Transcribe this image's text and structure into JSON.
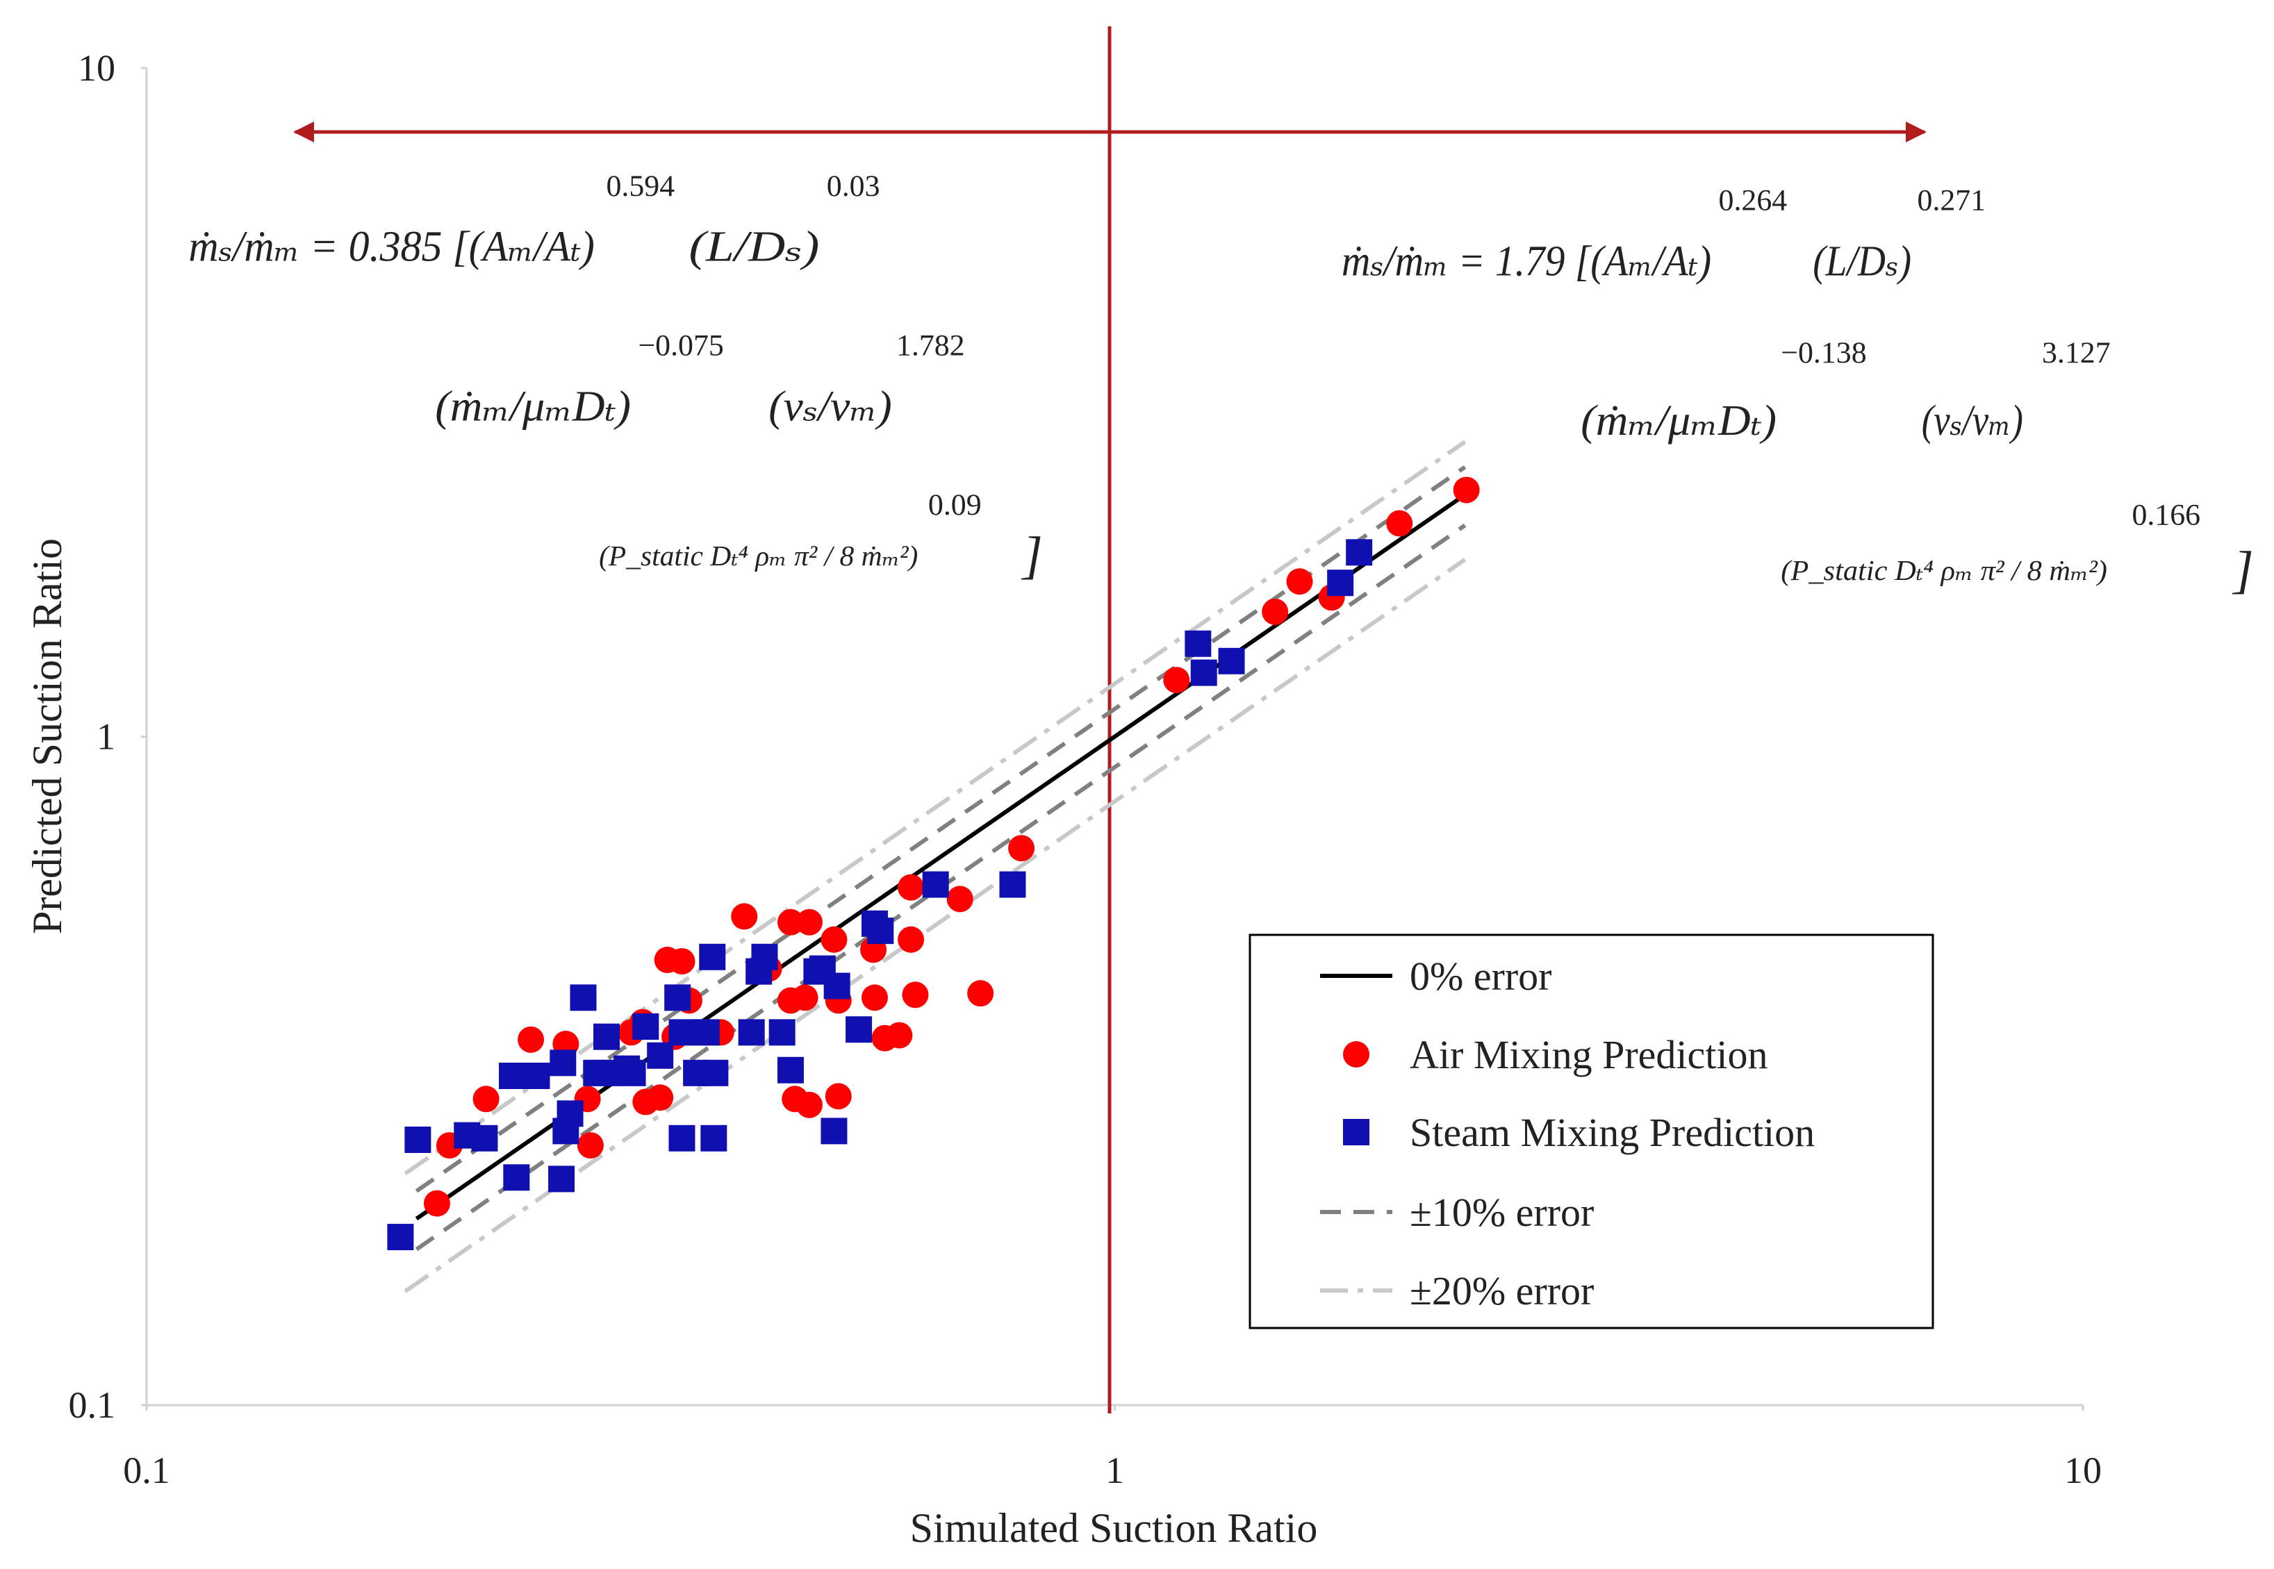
{
  "chart_data": {
    "type": "scatter",
    "x_label": "Simulated Suction Ratio",
    "y_label": "Predicted Suction Ratio",
    "x_scale": "log",
    "y_scale": "log",
    "xlim": [
      0.1,
      10
    ],
    "ylim": [
      0.1,
      10
    ],
    "xticks": [
      0.1,
      1,
      10
    ],
    "yticks": [
      0.1,
      1,
      10
    ],
    "grid": false,
    "legend": "lower right",
    "series": [
      {
        "name": "0% error",
        "color": "#000000",
        "line_style": "solid",
        "lines": [
          {
            "x": [
              0.19,
              2.3
            ],
            "values": [
              0.19,
              2.3
            ]
          }
        ]
      },
      {
        "name": "Air Mixing Prediction",
        "color": "#ff0000",
        "marker": "circle",
        "x": [
          0.1995,
          0.2055,
          0.2242,
          0.2494,
          0.271,
          0.2854,
          0.2874,
          0.3166,
          0.3254,
          0.3277,
          0.3392,
          0.3451,
          0.3572,
          0.3511,
          0.3634,
          0.392,
          0.4143,
          0.4392,
          0.4626,
          0.4837,
          0.4626,
          0.4786,
          0.4674,
          0.4837,
          0.5129,
          0.5183,
          0.5183,
          0.5632,
          0.565,
          0.5788,
          0.599,
          0.6158,
          0.6158,
          0.6223,
          0.692,
          0.7265,
          0.8008,
          1.158,
          1.464,
          1.552,
          1.675,
          1.968,
          2.308
        ],
        "values": [
          0.2003,
          0.2446,
          0.287,
          0.3521,
          0.3469,
          0.287,
          0.2446,
          0.361,
          0.3739,
          0.2841,
          0.2884,
          0.4634,
          0.4611,
          0.3556,
          0.4029,
          0.361,
          0.5383,
          0.4497,
          0.5276,
          0.5276,
          0.4029,
          0.4069,
          0.287,
          0.2812,
          0.497,
          0.4029,
          0.2897,
          0.48,
          0.4069,
          0.3539,
          0.3574,
          0.5948,
          0.497,
          0.4109,
          0.5715,
          0.413,
          0.6808,
          1.215,
          1.537,
          1.706,
          1.615,
          2.084,
          2.338
        ]
      },
      {
        "name": "Steam Mixing Prediction",
        "color": "#1010b0",
        "marker": "square",
        "x": [
          0.1829,
          0.1906,
          0.2143,
          0.2234,
          0.2385,
          0.241,
          0.2529,
          0.2682,
          0.271,
          0.2738,
          0.2692,
          0.2825,
          0.2914,
          0.2986,
          0.2986,
          0.3133,
          0.3177,
          0.3277,
          0.3392,
          0.3535,
          0.3572,
          0.3572,
          0.3696,
          0.3787,
          0.384,
          0.3853,
          0.3866,
          0.4215,
          0.4289,
          0.4348,
          0.4533,
          0.4626,
          0.4921,
          0.499,
          0.5129,
          0.5165,
          0.544,
          0.565,
          0.5728,
          0.6531,
          0.7843,
          1.219,
          1.236,
          1.32,
          1.71,
          1.788
        ],
        "values": [
          0.1784,
          0.2494,
          0.2532,
          0.2507,
          0.3108,
          0.219,
          0.3108,
          0.2179,
          0.257,
          0.2729,
          0.325,
          0.4069,
          0.3139,
          0.3556,
          0.3139,
          0.3186,
          0.3139,
          0.3683,
          0.3333,
          0.4069,
          0.2507,
          0.361,
          0.3139,
          0.361,
          0.4681,
          0.2507,
          0.3139,
          0.361,
          0.4453,
          0.4681,
          0.361,
          0.317,
          0.4453,
          0.4497,
          0.257,
          0.4236,
          0.3646,
          0.525,
          0.5122,
          0.6007,
          0.6007,
          1.377,
          1.246,
          1.297,
          1.698,
          1.886
        ]
      },
      {
        "name": "±10% error",
        "color": "#808080",
        "line_style": "dashed",
        "lines": [
          {
            "x": [
              0.19,
              2.3
            ],
            "values": [
              0.209,
              2.53
            ]
          },
          {
            "x": [
              0.19,
              2.3
            ],
            "values": [
              0.171,
              2.07
            ]
          }
        ]
      },
      {
        "name": "±20% error",
        "color": "#c8c8c8",
        "line_style": "dashdot",
        "lines": [
          {
            "x": [
              0.185,
              2.3
            ],
            "values": [
              0.222,
              2.76
            ]
          },
          {
            "x": [
              0.185,
              2.3
            ],
            "values": [
              0.148,
              1.84
            ]
          }
        ]
      }
    ],
    "annotations": [
      {
        "lines": [
          [
            {
              "text": "ṁₛ/ṁₘ = 0.385 [(Aₘ/Aₜ)",
              "sup": "0.594"
            },
            {
              "text": "(L/Dₛ)",
              "sup": "0.03"
            }
          ],
          [
            {
              "text": "(ṁₘ/μₘDₜ)",
              "sup": "−0.075"
            },
            {
              "text": "(νₛ/νₘ)",
              "sup": "1.782"
            }
          ],
          [
            {
              "text": "(P_static Dₜ⁴ ρₘ π² / 8 ṁₘ²)",
              "sup": "0.09"
            },
            {
              "text": "]"
            }
          ]
        ]
      },
      {
        "lines": [
          [
            {
              "text": "ṁₛ/ṁₘ = 1.79 [(Aₘ/Aₜ)",
              "sup": "0.264"
            },
            {
              "text": "(L/Dₛ)",
              "sup": "0.271"
            }
          ],
          [
            {
              "text": "(ṁₘ/μₘDₜ)",
              "sup": "−0.138"
            },
            {
              "text": "(νₛ/νₘ)",
              "sup": "3.127"
            }
          ],
          [
            {
              "text": "(P_static Dₜ⁴ ρₘ π² / 8 ṁₘ²)",
              "sup": "0.166"
            },
            {
              "text": "]"
            }
          ]
        ]
      }
    ]
  }
}
